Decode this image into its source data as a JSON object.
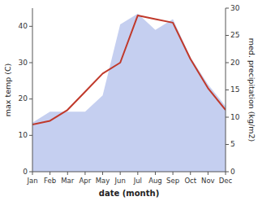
{
  "chart_data": {
    "type": "line",
    "categories": [
      "Jan",
      "Feb",
      "Mar",
      "Apr",
      "May",
      "Jun",
      "Jul",
      "Aug",
      "Sep",
      "Oct",
      "Nov",
      "Dec"
    ],
    "series": [
      {
        "type": "area",
        "color": "#c5cff0",
        "axis": "y2",
        "values": [
          9,
          11,
          11,
          11,
          14,
          27,
          29,
          26,
          28,
          21,
          16,
          12
        ]
      },
      {
        "type": "line",
        "color": "#c0392b",
        "values": [
          13,
          14,
          17,
          22,
          27,
          30,
          43,
          42,
          41,
          31,
          23,
          17
        ]
      }
    ],
    "xlabel": "date (month)",
    "ylabel": "max temp (C)",
    "y2label": "med. precipitation (kg/m2)",
    "ylim": [
      0,
      45
    ],
    "yticks": [
      0,
      10,
      20,
      30,
      40
    ],
    "y2lim": [
      0,
      30
    ],
    "y2ticks": [
      0,
      5,
      10,
      15,
      20,
      25,
      30
    ]
  }
}
